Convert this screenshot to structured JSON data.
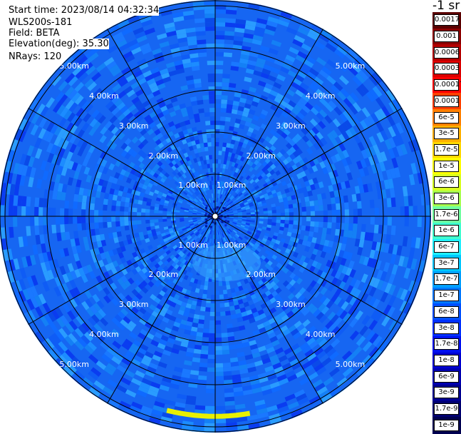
{
  "info": {
    "start_time": "Start time: 2023/08/14 04:32:34",
    "instrument": "WLS200s-181",
    "field": "Field: BETA",
    "elevation": "Elevation(deg): 35.30",
    "nrays": "NRays: 120"
  },
  "colorbar": {
    "units": "-1 sr",
    "labels": [
      "0.0017",
      "0.001",
      "0.0006",
      "0.0003",
      "0.00017",
      "0.0001",
      "6e-5",
      "3e-5",
      "1.7e-5",
      "1e-5",
      "6e-6",
      "3e-6",
      "1.7e-6",
      "1e-6",
      "6e-7",
      "3e-7",
      "1.7e-7",
      "1e-7",
      "6e-8",
      "3e-8",
      "1.7e-8",
      "1e-8",
      "6e-9",
      "3e-9",
      "1.7e-9",
      "1e-9"
    ],
    "colors": [
      "#5a0000",
      "#8c0000",
      "#b40000",
      "#dc0000",
      "#ff0000",
      "#ff4000",
      "#ff8000",
      "#ffb000",
      "#ffd800",
      "#ffff00",
      "#d8ff20",
      "#a8ff50",
      "#70ffa0",
      "#40ffd0",
      "#20f0ff",
      "#00c8ff",
      "#00a0ff",
      "#0078ff",
      "#0050ff",
      "#0030ff",
      "#0010f0",
      "#0000d0",
      "#0000b0",
      "#000090",
      "#000070",
      "#000050"
    ]
  },
  "range_labels": [
    "1.00km",
    "2.00km",
    "3.00km",
    "4.00km",
    "5.00km"
  ],
  "ppi": {
    "range_rings_km": [
      1,
      2,
      3,
      4,
      5
    ],
    "max_range_km": 5.1,
    "n_rays": 120,
    "feature": {
      "azimuth_start_deg": 170,
      "azimuth_end_deg": 194,
      "range_km": 4.75,
      "value": "1e-5"
    }
  }
}
